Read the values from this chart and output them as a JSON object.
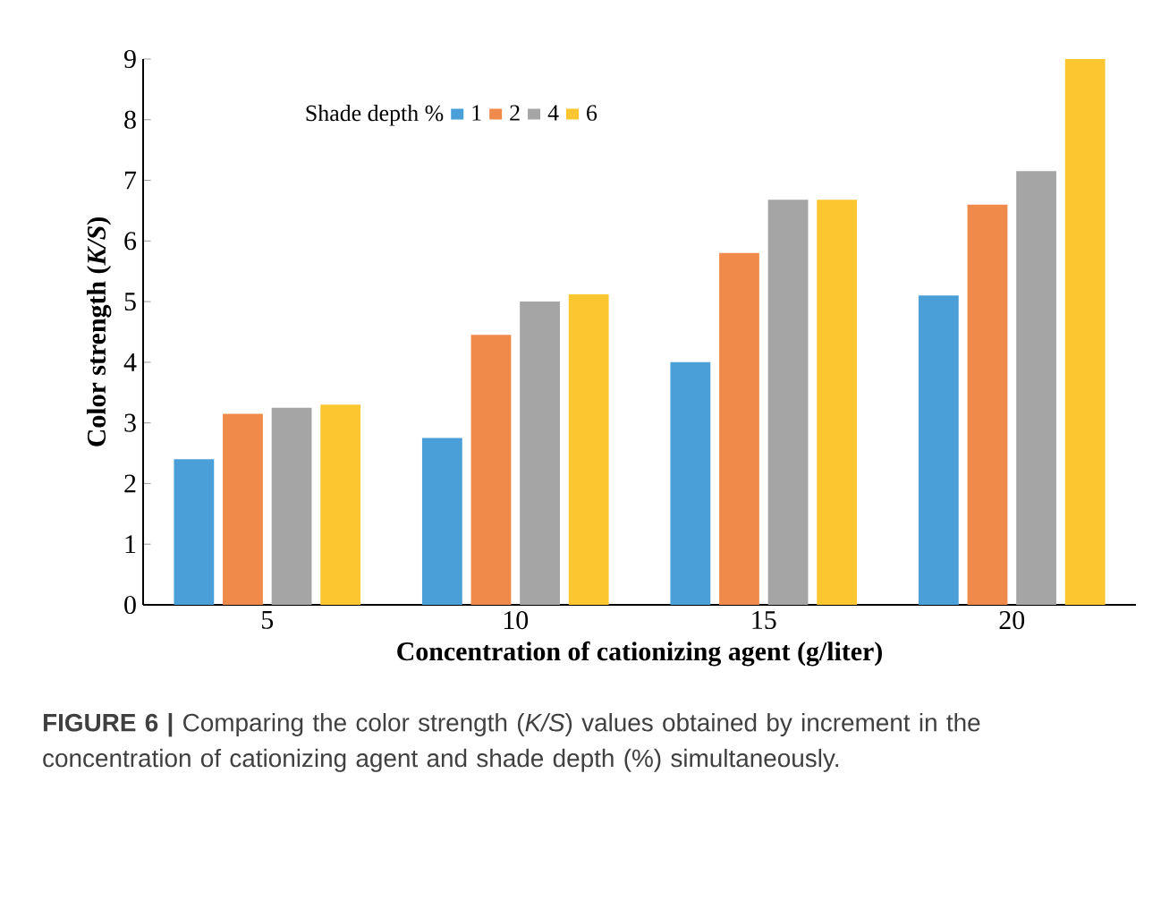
{
  "chart_data": {
    "type": "bar",
    "xlabel": "Concentration of cationizing agent (g/liter)",
    "ylabel": "Color strength (*K/S*)",
    "legend_title": "Shade depth %",
    "categories": [
      "5",
      "10",
      "15",
      "20"
    ],
    "series": [
      {
        "name": "1",
        "color": "#4a9fd8",
        "values": [
          2.4,
          2.75,
          4.0,
          5.1
        ]
      },
      {
        "name": "2",
        "color": "#f08a4b",
        "values": [
          3.15,
          4.45,
          5.8,
          6.6
        ]
      },
      {
        "name": "4",
        "color": "#a5a5a5",
        "values": [
          3.25,
          5.0,
          6.68,
          7.15
        ]
      },
      {
        "name": "6",
        "color": "#fcc630",
        "values": [
          3.3,
          5.12,
          6.68,
          9.0
        ]
      }
    ],
    "ylim": [
      0,
      9
    ],
    "yticks": [
      0,
      1,
      2,
      3,
      4,
      5,
      6,
      7,
      8,
      9
    ],
    "grid": false,
    "legend": "top",
    "annotations": [
      "**FIGURE 6 |** Comparing the color strength (*K/S*) values obtained by increment in the concentration of cationizing agent and shade depth (%) simultaneously."
    ]
  }
}
